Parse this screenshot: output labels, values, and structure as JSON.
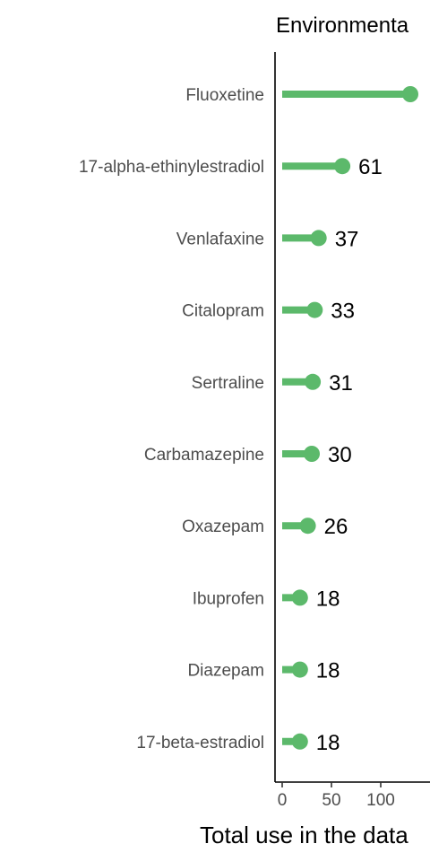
{
  "chart_data": {
    "type": "lollipop",
    "title": "Environmenta",
    "xlabel": "Total use in the data",
    "categories": [
      "Fluoxetine",
      "17-alpha-ethinylestradiol",
      "Venlafaxine",
      "Citalopram",
      "Sertraline",
      "Carbamazepine",
      "Oxazepam",
      "Ibuprofen",
      "Diazepam",
      "17-beta-estradiol"
    ],
    "values": [
      130,
      61,
      37,
      33,
      31,
      30,
      26,
      18,
      18,
      18
    ],
    "value_labels": [
      "",
      "61",
      "37",
      "33",
      "31",
      "30",
      "26",
      "18",
      "18",
      "18"
    ],
    "x_ticks": [
      0,
      50,
      100
    ],
    "x_tick_labels": [
      "0",
      "50",
      "100"
    ],
    "xlim": [
      -7,
      137
    ],
    "grid": false,
    "color": "#5cb96b"
  }
}
